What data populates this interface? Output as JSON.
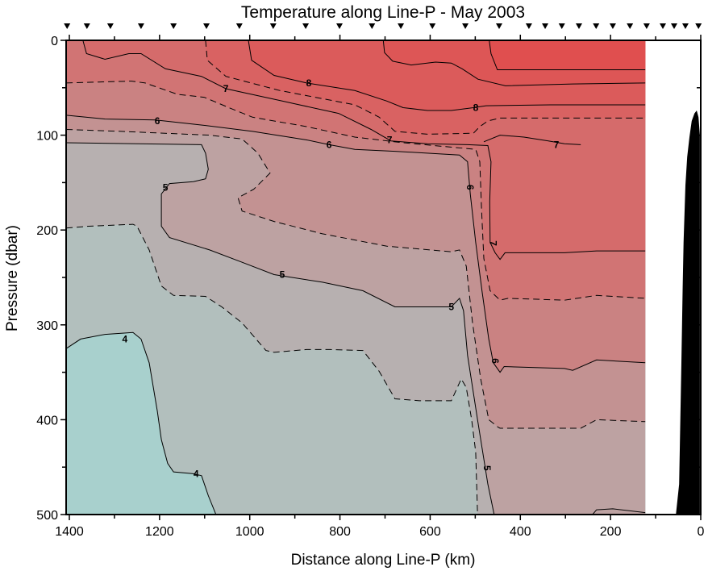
{
  "chart_data": {
    "type": "contour",
    "title": "Temperature along Line-P - May 2003",
    "xlabel": "Distance along Line-P (km)",
    "ylabel": "Pressure (dbar)",
    "xlim": [
      1407,
      0
    ],
    "ylim": [
      0,
      500
    ],
    "data_xmax_right": 123,
    "xticks": [
      1400,
      1200,
      1000,
      800,
      600,
      400,
      200,
      0
    ],
    "yticks": [
      0,
      100,
      200,
      300,
      400,
      500
    ],
    "stations_km": [
      1405,
      1361,
      1309,
      1241,
      1169,
      1096,
      1023,
      948,
      876,
      801,
      729,
      665,
      595,
      522,
      447,
      381,
      345,
      308,
      270,
      232,
      195,
      157,
      120,
      84,
      59,
      34,
      5
    ],
    "base_color": "#a8d0cd",
    "contours": [
      {
        "level": 4,
        "dashed": false,
        "color": "#b2bfbd",
        "pts": [
          [
            1407,
            325
          ],
          [
            1375,
            315
          ],
          [
            1321,
            310
          ],
          [
            1259,
            308
          ],
          [
            1241,
            315
          ],
          [
            1223,
            340
          ],
          [
            1205,
            391
          ],
          [
            1196,
            421
          ],
          [
            1182,
            446
          ],
          [
            1169,
            455
          ],
          [
            1125,
            457
          ],
          [
            1107,
            459
          ],
          [
            1092,
            480
          ],
          [
            1075,
            500
          ]
        ],
        "close": [
          [
            123,
            500
          ],
          [
            123,
            0
          ],
          [
            1407,
            0
          ]
        ]
      },
      {
        "level": 4.5,
        "dashed": true,
        "color": "#b7b0b0",
        "pts": [
          [
            1407,
            198
          ],
          [
            1357,
            196
          ],
          [
            1259,
            194
          ],
          [
            1250,
            196
          ],
          [
            1223,
            221
          ],
          [
            1196,
            259
          ],
          [
            1169,
            269
          ],
          [
            1098,
            270
          ],
          [
            1062,
            281
          ],
          [
            1017,
            298
          ],
          [
            964,
            327
          ],
          [
            946,
            329
          ],
          [
            874,
            326
          ],
          [
            821,
            326
          ],
          [
            749,
            327
          ],
          [
            713,
            349
          ],
          [
            678,
            378
          ],
          [
            624,
            380
          ],
          [
            553,
            380
          ],
          [
            531,
            357
          ],
          [
            520,
            366
          ],
          [
            508,
            400
          ],
          [
            499,
            434
          ],
          [
            495,
            500
          ]
        ],
        "close": [
          [
            123,
            500
          ],
          [
            123,
            0
          ],
          [
            1407,
            0
          ]
        ]
      },
      {
        "level": 5,
        "dashed": false,
        "color": "#bda2a2",
        "pts": [
          [
            1407,
            108
          ],
          [
            1107,
            110
          ],
          [
            1098,
            119
          ],
          [
            1092,
            136
          ],
          [
            1098,
            146
          ],
          [
            1125,
            149
          ],
          [
            1178,
            151
          ],
          [
            1196,
            162
          ],
          [
            1196,
            196
          ],
          [
            1178,
            208
          ],
          [
            1089,
            221
          ],
          [
            1017,
            234
          ],
          [
            946,
            247
          ],
          [
            839,
            255
          ],
          [
            749,
            264
          ],
          [
            678,
            281
          ],
          [
            553,
            281
          ],
          [
            535,
            272
          ],
          [
            526,
            285
          ],
          [
            517,
            332
          ],
          [
            495,
            400
          ],
          [
            472,
            468
          ],
          [
            458,
            500
          ]
        ],
        "close": [
          [
            123,
            500
          ],
          [
            123,
            0
          ],
          [
            1407,
            0
          ]
        ]
      },
      {
        "level": 5.5,
        "dashed": true,
        "color": "#c39292",
        "pts": [
          [
            1407,
            94
          ],
          [
            1286,
            96
          ],
          [
            1089,
            100
          ],
          [
            1017,
            104
          ],
          [
            982,
            119
          ],
          [
            955,
            140
          ],
          [
            991,
            157
          ],
          [
            1026,
            166
          ],
          [
            1017,
            180
          ],
          [
            946,
            191
          ],
          [
            839,
            204
          ],
          [
            696,
            217
          ],
          [
            553,
            223
          ],
          [
            535,
            221
          ],
          [
            520,
            238
          ],
          [
            506,
            298
          ],
          [
            488,
            357
          ],
          [
            470,
            400
          ],
          [
            449,
            408
          ],
          [
            445,
            409
          ],
          [
            266,
            409
          ],
          [
            231,
            400
          ],
          [
            123,
            402
          ]
        ],
        "close": [
          [
            123,
            0
          ],
          [
            1407,
            0
          ]
        ]
      },
      {
        "level": 6,
        "dashed": false,
        "color": "#ca8282",
        "pts": [
          [
            1407,
            79
          ],
          [
            1321,
            83
          ],
          [
            1209,
            84
          ],
          [
            1112,
            89
          ],
          [
            994,
            96
          ],
          [
            874,
            105
          ],
          [
            824,
            110
          ],
          [
            767,
            115
          ],
          [
            678,
            117
          ],
          [
            535,
            121
          ],
          [
            517,
            128
          ],
          [
            511,
            162
          ],
          [
            499,
            213
          ],
          [
            485,
            264
          ],
          [
            470,
            315
          ],
          [
            460,
            340
          ],
          [
            445,
            350
          ],
          [
            436,
            344
          ],
          [
            302,
            346
          ],
          [
            284,
            348
          ],
          [
            231,
            337
          ],
          [
            123,
            340
          ]
        ],
        "close": [
          [
            123,
            0
          ],
          [
            1407,
            0
          ]
        ]
      },
      {
        "level": 6.5,
        "dashed": true,
        "color": "#d17474",
        "pts": [
          [
            1407,
            45
          ],
          [
            1334,
            44
          ],
          [
            1262,
            43
          ],
          [
            1232,
            45
          ],
          [
            1160,
            57
          ],
          [
            1101,
            60
          ],
          [
            1041,
            72
          ],
          [
            994,
            81
          ],
          [
            874,
            91
          ],
          [
            767,
            102
          ],
          [
            660,
            108
          ],
          [
            499,
            115
          ],
          [
            490,
            128
          ],
          [
            486,
            179
          ],
          [
            481,
            230
          ],
          [
            467,
            264
          ],
          [
            445,
            274
          ],
          [
            427,
            272
          ],
          [
            302,
            274
          ],
          [
            231,
            269
          ],
          [
            123,
            272
          ]
        ],
        "close": [
          [
            123,
            0
          ],
          [
            1407,
            0
          ]
        ]
      },
      {
        "level": 7,
        "dashed": false,
        "color": "#d56b6b",
        "pts": [
          [
            1370,
            0
          ],
          [
            1362,
            14
          ],
          [
            1321,
            20
          ],
          [
            1268,
            14
          ],
          [
            1241,
            14
          ],
          [
            1187,
            30
          ],
          [
            1107,
            38
          ],
          [
            1053,
            51
          ],
          [
            928,
            64
          ],
          [
            803,
            77
          ],
          [
            731,
            94
          ],
          [
            687,
            106
          ],
          [
            606,
            109
          ],
          [
            517,
            110
          ],
          [
            472,
            111
          ],
          [
            465,
            128
          ],
          [
            468,
            170
          ],
          [
            467,
            213
          ],
          [
            456,
            224
          ],
          [
            445,
            231
          ],
          [
            434,
            224
          ],
          [
            302,
            224
          ],
          [
            231,
            222
          ],
          [
            123,
            222
          ]
        ],
        "close": [
          [
            123,
            0
          ]
        ]
      },
      {
        "level": 7.5,
        "dashed": true,
        "color": "#d96262",
        "pts": [
          [
            1098,
            0
          ],
          [
            1094,
            21
          ],
          [
            1053,
            38
          ],
          [
            933,
            53
          ],
          [
            767,
            68
          ],
          [
            713,
            81
          ],
          [
            678,
            96
          ],
          [
            606,
            99
          ],
          [
            504,
            98
          ],
          [
            490,
            91
          ],
          [
            472,
            85
          ],
          [
            445,
            82
          ],
          [
            302,
            82
          ],
          [
            123,
            82
          ]
        ],
        "close": [
          [
            123,
            0
          ]
        ]
      },
      {
        "level": 8,
        "dashed": false,
        "color": "#db5b5b",
        "pts": [
          [
            1003,
            0
          ],
          [
            996,
            21
          ],
          [
            946,
            37
          ],
          [
            874,
            45
          ],
          [
            767,
            53
          ],
          [
            696,
            64
          ],
          [
            660,
            71
          ],
          [
            606,
            74
          ],
          [
            553,
            74
          ],
          [
            504,
            71
          ],
          [
            476,
            69
          ],
          [
            333,
            68
          ],
          [
            123,
            68
          ]
        ],
        "close": [
          [
            123,
            0
          ]
        ]
      },
      {
        "level": 8.5,
        "dashed": false,
        "color": "#dd5656",
        "pts": [
          [
            704,
            0
          ],
          [
            701,
            13
          ],
          [
            683,
            22
          ],
          [
            642,
            26
          ],
          [
            588,
            23
          ],
          [
            553,
            24
          ],
          [
            529,
            30
          ],
          [
            494,
            41
          ],
          [
            433,
            48
          ],
          [
            284,
            46
          ],
          [
            123,
            45
          ]
        ],
        "close": [
          [
            123,
            0
          ]
        ]
      },
      {
        "level": 9,
        "dashed": false,
        "color": "#e04f4f",
        "pts": [
          [
            469,
            0
          ],
          [
            465,
            14
          ],
          [
            451,
            31
          ],
          [
            302,
            31
          ],
          [
            123,
            31
          ]
        ],
        "close": [
          [
            123,
            0
          ]
        ]
      }
    ],
    "open_lines": [
      {
        "level": 7,
        "dashed": false,
        "pts": [
          [
            481,
            107
          ],
          [
            445,
            100
          ],
          [
            392,
            102
          ],
          [
            338,
            106
          ],
          [
            302,
            109
          ],
          [
            266,
            110
          ]
        ]
      },
      {
        "level": 5,
        "dashed": false,
        "pts": [
          [
            240,
            500
          ],
          [
            231,
            495
          ],
          [
            195,
            494
          ],
          [
            123,
            498
          ]
        ]
      }
    ],
    "contour_labels": [
      {
        "text": "8",
        "km": 869,
        "dbar": 45
      },
      {
        "text": "8",
        "km": 499,
        "dbar": 71
      },
      {
        "text": "7",
        "km": 1053,
        "dbar": 51
      },
      {
        "text": "7",
        "km": 690,
        "dbar": 105
      },
      {
        "text": "7",
        "km": 320,
        "dbar": 110
      },
      {
        "text": "7",
        "km": 460,
        "dbar": 214,
        "vertical": true
      },
      {
        "text": "6",
        "km": 1205,
        "dbar": 85
      },
      {
        "text": "6",
        "km": 824,
        "dbar": 110
      },
      {
        "text": "6",
        "km": 511,
        "dbar": 155,
        "vertical": true
      },
      {
        "text": "6",
        "km": 456,
        "dbar": 338,
        "vertical": true
      },
      {
        "text": "5",
        "km": 1187,
        "dbar": 155
      },
      {
        "text": "5",
        "km": 928,
        "dbar": 247
      },
      {
        "text": "5",
        "km": 553,
        "dbar": 281
      },
      {
        "text": "5",
        "km": 474,
        "dbar": 451,
        "vertical": true
      },
      {
        "text": "4",
        "km": 1277,
        "dbar": 315
      },
      {
        "text": "4",
        "km": 1119,
        "dbar": 457
      }
    ],
    "bathymetry": [
      [
        55,
        500
      ],
      [
        48,
        468
      ],
      [
        43,
        340
      ],
      [
        40,
        260
      ],
      [
        38,
        213
      ],
      [
        34,
        153
      ],
      [
        30,
        123
      ],
      [
        25,
        102
      ],
      [
        20,
        85
      ],
      [
        14,
        77
      ],
      [
        9,
        74
      ],
      [
        5,
        81
      ],
      [
        2,
        100
      ],
      [
        2,
        500
      ]
    ]
  }
}
